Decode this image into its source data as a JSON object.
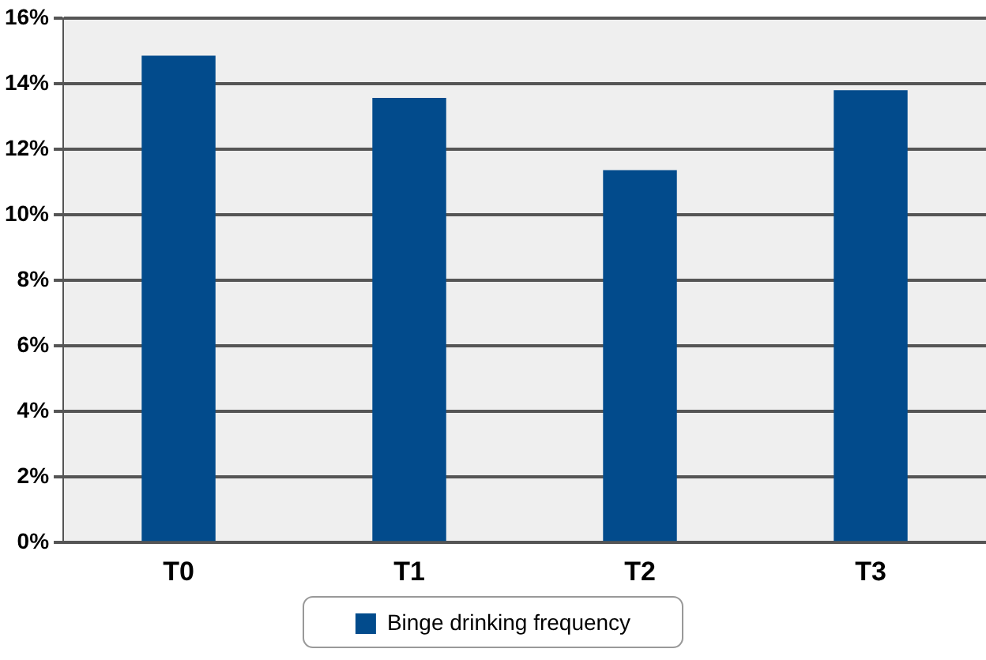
{
  "chart_data": {
    "type": "bar",
    "categories": [
      "T0",
      "T1",
      "T2",
      "T3"
    ],
    "series": [
      {
        "name": "Binge drinking frequency",
        "color": "#024b8c",
        "values": [
          14.85,
          13.56,
          11.36,
          13.8
        ]
      }
    ],
    "ylim": [
      0,
      16
    ],
    "yticks": [
      {
        "value": 0,
        "label": "0%"
      },
      {
        "value": 2,
        "label": "2%"
      },
      {
        "value": 4,
        "label": "4%"
      },
      {
        "value": 6,
        "label": "6%"
      },
      {
        "value": 8,
        "label": "8%"
      },
      {
        "value": 10,
        "label": "10%"
      },
      {
        "value": 12,
        "label": "12%"
      },
      {
        "value": 14,
        "label": "14%"
      },
      {
        "value": 16,
        "label": "16%"
      }
    ],
    "grid": "y",
    "legend": "bottom"
  }
}
